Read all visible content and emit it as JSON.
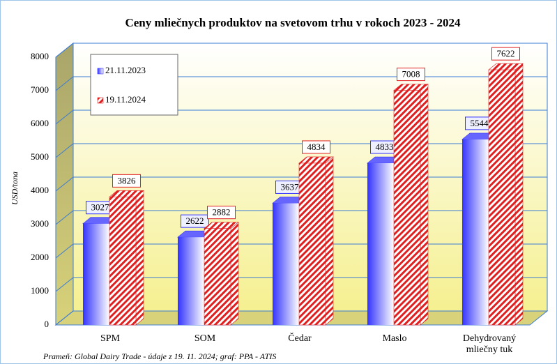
{
  "chart_data": {
    "type": "bar3d",
    "title": "Ceny mliečnych produktov na svetovom trhu v rokoch 2023 - 2024",
    "y_label": "USD/tona",
    "source": "Prameň: Global Dairy Trade - údaje z 19. 11. 2024; graf: PPA - ATIS",
    "categories": [
      "SPM",
      "SOM",
      "Čedar",
      "Maslo",
      "Dehydrovaný mliečny tuk"
    ],
    "series": [
      {
        "name": "21.11.2023",
        "color": "#3333ff",
        "values": [
          3027,
          2622,
          3637,
          4833,
          5544
        ]
      },
      {
        "name": "19.11.2024",
        "color": "#e02020",
        "values": [
          3826,
          2882,
          4834,
          7008,
          7622
        ]
      }
    ],
    "ylim": [
      0,
      8000
    ],
    "yticks": [
      0,
      1000,
      2000,
      3000,
      4000,
      5000,
      6000,
      7000,
      8000
    ],
    "grid": true,
    "legend": "upper left"
  }
}
